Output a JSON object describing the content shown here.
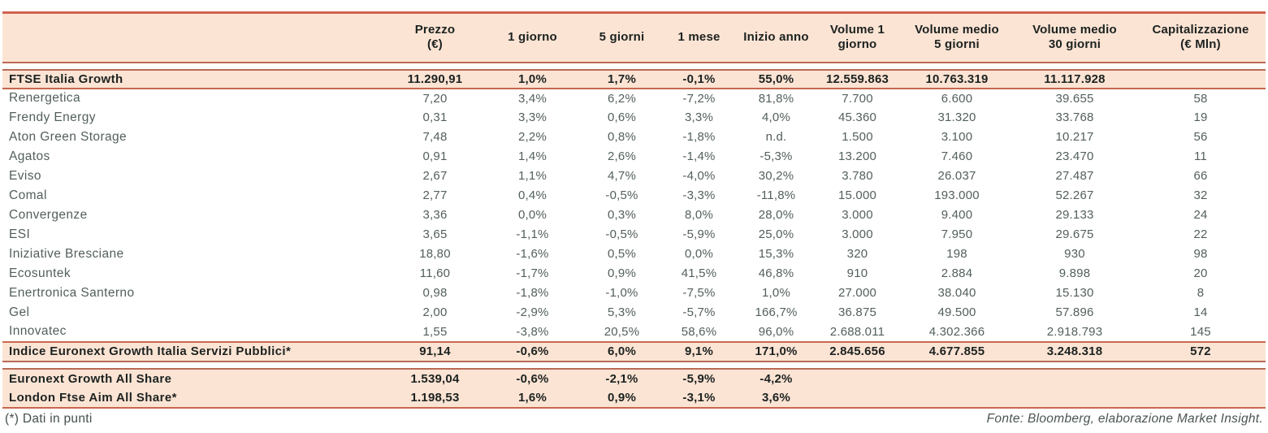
{
  "colors": {
    "band_peach": "#fce4d4",
    "rule_terracotta": "#c8684f",
    "rule_muted": "#b96a56",
    "text_bold": "#1c2220",
    "text_regular": "#53605c"
  },
  "table": {
    "columns": [
      "",
      "Prezzo\n(€)",
      "1 giorno",
      "5 giorni",
      "1 mese",
      "Inizio anno",
      "Volume 1\ngiorno",
      "Volume medio\n5 giorni",
      "Volume medio\n30 giorni",
      "Capitalizzazione\n(€ Mln)"
    ],
    "sections": [
      {
        "class": "index-row",
        "spacer_before": true,
        "rows": [
          {
            "name": "FTSE Italia Growth",
            "values": [
              "11.290,91",
              "1,0%",
              "1,7%",
              "-0,1%",
              "55,0%",
              "12.559.863",
              "10.763.319",
              "11.117.928",
              ""
            ]
          }
        ]
      },
      {
        "class": "company-row",
        "spacer_before": false,
        "rows": [
          {
            "name": "Renergetica",
            "values": [
              "7,20",
              "3,4%",
              "6,2%",
              "-7,2%",
              "81,8%",
              "7.700",
              "6.600",
              "39.655",
              "58"
            ]
          },
          {
            "name": "Frendy Energy",
            "values": [
              "0,31",
              "3,3%",
              "0,6%",
              "3,3%",
              "4,0%",
              "45.360",
              "31.320",
              "33.768",
              "19"
            ]
          },
          {
            "name": "Aton Green Storage",
            "values": [
              "7,48",
              "2,2%",
              "0,8%",
              "-1,8%",
              "n.d.",
              "1.500",
              "3.100",
              "10.217",
              "56"
            ]
          },
          {
            "name": "Agatos",
            "values": [
              "0,91",
              "1,4%",
              "2,6%",
              "-1,4%",
              "-5,3%",
              "13.200",
              "7.460",
              "23.470",
              "11"
            ]
          },
          {
            "name": "Eviso",
            "values": [
              "2,67",
              "1,1%",
              "4,7%",
              "-4,0%",
              "30,2%",
              "3.780",
              "26.037",
              "27.487",
              "66"
            ]
          },
          {
            "name": "Comal",
            "values": [
              "2,77",
              "0,4%",
              "-0,5%",
              "-3,3%",
              "-11,8%",
              "15.000",
              "193.000",
              "52.267",
              "32"
            ]
          },
          {
            "name": "Convergenze",
            "values": [
              "3,36",
              "0,0%",
              "0,3%",
              "8,0%",
              "28,0%",
              "3.000",
              "9.400",
              "29.133",
              "24"
            ]
          },
          {
            "name": "ESI",
            "values": [
              "3,65",
              "-1,1%",
              "-0,5%",
              "-5,9%",
              "25,0%",
              "3.000",
              "7.950",
              "29.675",
              "22"
            ]
          },
          {
            "name": "Iniziative Bresciane",
            "values": [
              "18,80",
              "-1,6%",
              "0,5%",
              "0,0%",
              "15,3%",
              "320",
              "198",
              "930",
              "98"
            ]
          },
          {
            "name": "Ecosuntek",
            "values": [
              "11,60",
              "-1,7%",
              "0,9%",
              "41,5%",
              "46,8%",
              "910",
              "2.884",
              "9.898",
              "20"
            ]
          },
          {
            "name": "Enertronica Santerno",
            "values": [
              "0,98",
              "-1,8%",
              "-1,0%",
              "-7,5%",
              "1,0%",
              "27.000",
              "38.040",
              "15.130",
              "8"
            ]
          },
          {
            "name": "Gel",
            "values": [
              "2,00",
              "-2,9%",
              "5,3%",
              "-5,7%",
              "166,7%",
              "36.875",
              "49.500",
              "57.896",
              "14"
            ]
          },
          {
            "name": "Innovatec",
            "values": [
              "1,55",
              "-3,8%",
              "20,5%",
              "58,6%",
              "96,0%",
              "2.688.011",
              "4.302.366",
              "2.918.793",
              "145"
            ]
          }
        ]
      },
      {
        "class": "indice-row",
        "spacer_before": false,
        "rows": [
          {
            "name": "Indice Euronext Growth Italia Servizi Pubblici*",
            "values": [
              "91,14",
              "-0,6%",
              "6,0%",
              "9,1%",
              "171,0%",
              "2.845.656",
              "4.677.855",
              "3.248.318",
              "572"
            ]
          }
        ]
      },
      {
        "class": "summary-row",
        "spacer_before": true,
        "rows": [
          {
            "name": "Euronext Growth All Share",
            "values": [
              "1.539,04",
              "-0,6%",
              "-2,1%",
              "-5,9%",
              "-4,2%",
              "",
              "",
              "",
              ""
            ]
          },
          {
            "name": "London Ftse Aim All Share*",
            "values": [
              "1.198,53",
              "1,6%",
              "0,9%",
              "-3,1%",
              "3,6%",
              "",
              "",
              "",
              ""
            ]
          }
        ]
      }
    ]
  },
  "footer": {
    "note": "(*) Dati in punti",
    "source": "Fonte: Bloomberg, elaborazione Market Insight."
  }
}
